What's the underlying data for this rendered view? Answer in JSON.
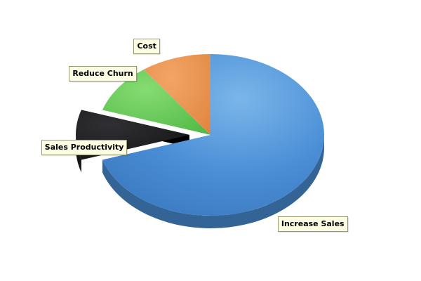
{
  "chart_data": {
    "type": "pie",
    "style": "3d-exploded",
    "title": "",
    "slices": [
      {
        "label": "Increase Sales",
        "value": 70,
        "color": "#4a8ed6"
      },
      {
        "label": "Sales Productivity",
        "value": 10,
        "color": "#1e1e20",
        "exploded": true
      },
      {
        "label": "Reduce Churn",
        "value": 10,
        "color": "#5fcc55"
      },
      {
        "label": "Cost",
        "value": 10,
        "color": "#ea8e4c"
      }
    ]
  }
}
